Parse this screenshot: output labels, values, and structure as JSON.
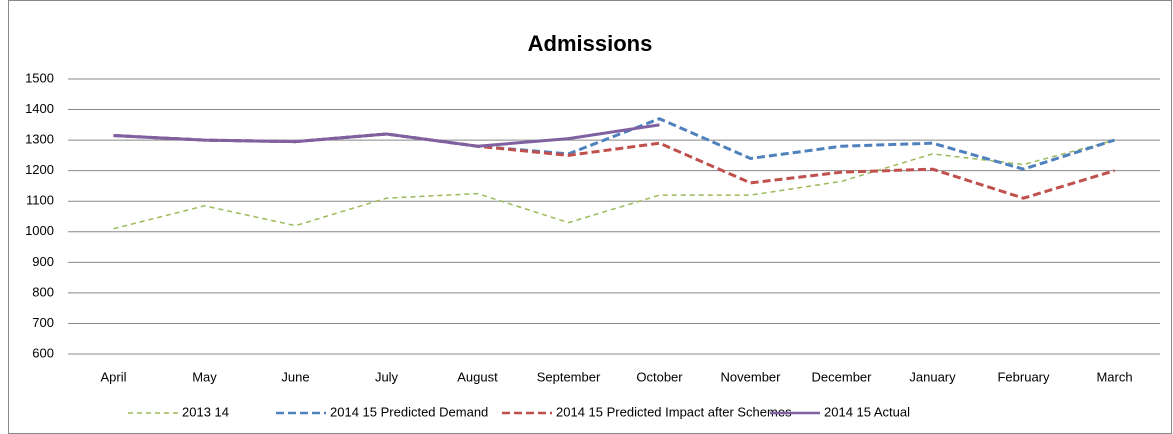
{
  "chart_data": {
    "type": "line",
    "title": "Admissions",
    "categories": [
      "April",
      "May",
      "June",
      "July",
      "August",
      "September",
      "October",
      "November",
      "December",
      "January",
      "February",
      "March"
    ],
    "series": [
      {
        "name": "2013 14",
        "color": "#9bbb59",
        "dashed": true,
        "values": [
          1010,
          1085,
          1020,
          1110,
          1125,
          1030,
          1120,
          1120,
          1165,
          1255,
          1220,
          1300
        ]
      },
      {
        "name": "2014 15 Predicted Demand",
        "color": "#4f81bd",
        "dashed": true,
        "values": [
          1315,
          1300,
          1295,
          1320,
          1280,
          1255,
          1370,
          1240,
          1280,
          1290,
          1205,
          1300
        ]
      },
      {
        "name": "2014 15 Predicted Impact after Schemes",
        "color": "#c0504d",
        "dashed": true,
        "values": [
          1315,
          1300,
          1295,
          1320,
          1280,
          1250,
          1290,
          1160,
          1195,
          1205,
          1110,
          1200
        ]
      },
      {
        "name": "2014 15 Actual",
        "color": "#7f60a0",
        "dashed": false,
        "values": [
          1315,
          1300,
          1295,
          1320,
          1280,
          1305,
          1350,
          null,
          null,
          null,
          null,
          null
        ]
      }
    ],
    "ylim": [
      600,
      1500
    ],
    "yticks": [
      600,
      700,
      800,
      900,
      1000,
      1100,
      1200,
      1300,
      1400,
      1500
    ],
    "grid": true,
    "legend": "bottom"
  }
}
